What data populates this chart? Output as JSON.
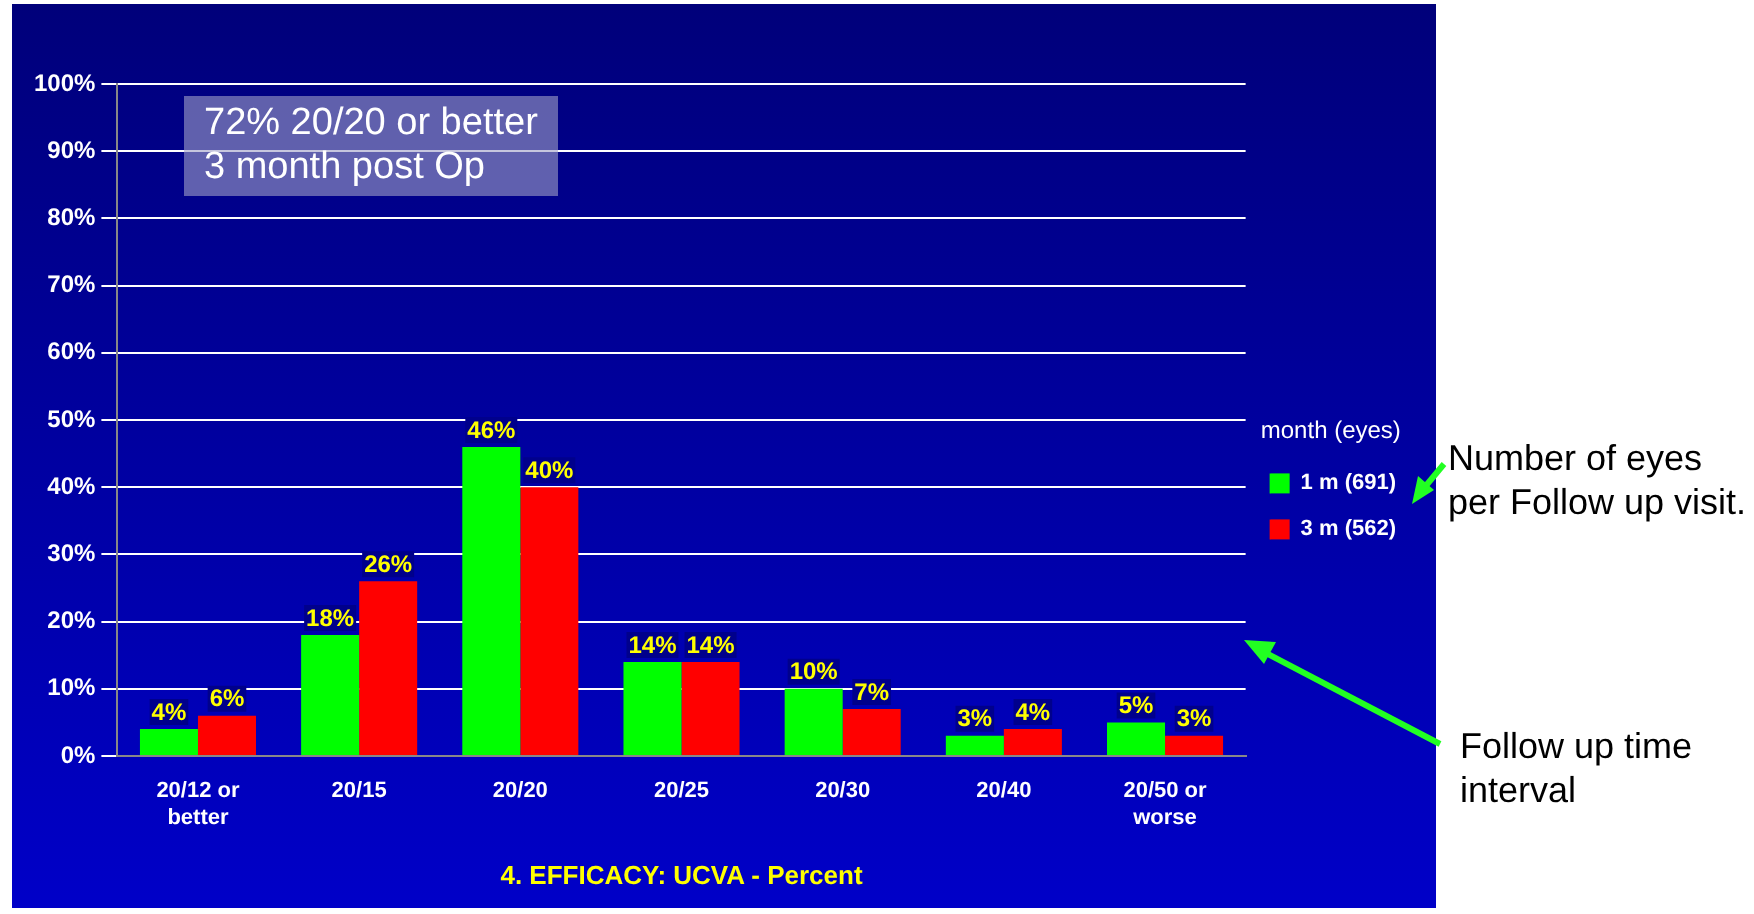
{
  "chart_data": {
    "type": "bar",
    "xlabel": "4. EFFICACY: UCVA - Percent",
    "legend_title": "month (eyes)",
    "legend": "right",
    "grid": "y",
    "categories": [
      "20/12 or better",
      "20/15",
      "20/20",
      "20/25",
      "20/30",
      "20/40",
      "20/50 or worse"
    ],
    "series": [
      {
        "name": "1 m (691)",
        "color": "#00ff00",
        "values": [
          4,
          18,
          46,
          14,
          10,
          3,
          5
        ],
        "value_labels": [
          "4%",
          "18%",
          "46%",
          "14%",
          "10%",
          "3%",
          "5%"
        ]
      },
      {
        "name": "3 m (562)",
        "color": "#ff0000",
        "values": [
          6,
          26,
          40,
          14,
          7,
          4,
          3
        ],
        "value_labels": [
          "6%",
          "26%",
          "40%",
          "14%",
          "7%",
          "4%",
          "3%"
        ]
      }
    ],
    "ylim": [
      0,
      100
    ],
    "yticks": [
      {
        "value": 0,
        "label": "0%"
      },
      {
        "value": 10,
        "label": "10%"
      },
      {
        "value": 20,
        "label": "20%"
      },
      {
        "value": 30,
        "label": "30%"
      },
      {
        "value": 40,
        "label": "40%"
      },
      {
        "value": 50,
        "label": "50%"
      },
      {
        "value": 60,
        "label": "60%"
      },
      {
        "value": 70,
        "label": "70%"
      },
      {
        "value": 80,
        "label": "80%"
      },
      {
        "value": 90,
        "label": "90%"
      },
      {
        "value": 100,
        "label": "100%"
      }
    ],
    "annotations": [
      "72% 20/20 or better\n3 month post Op",
      "Number of eyes per Follow up visit.",
      "Follow up time interval"
    ]
  }
}
